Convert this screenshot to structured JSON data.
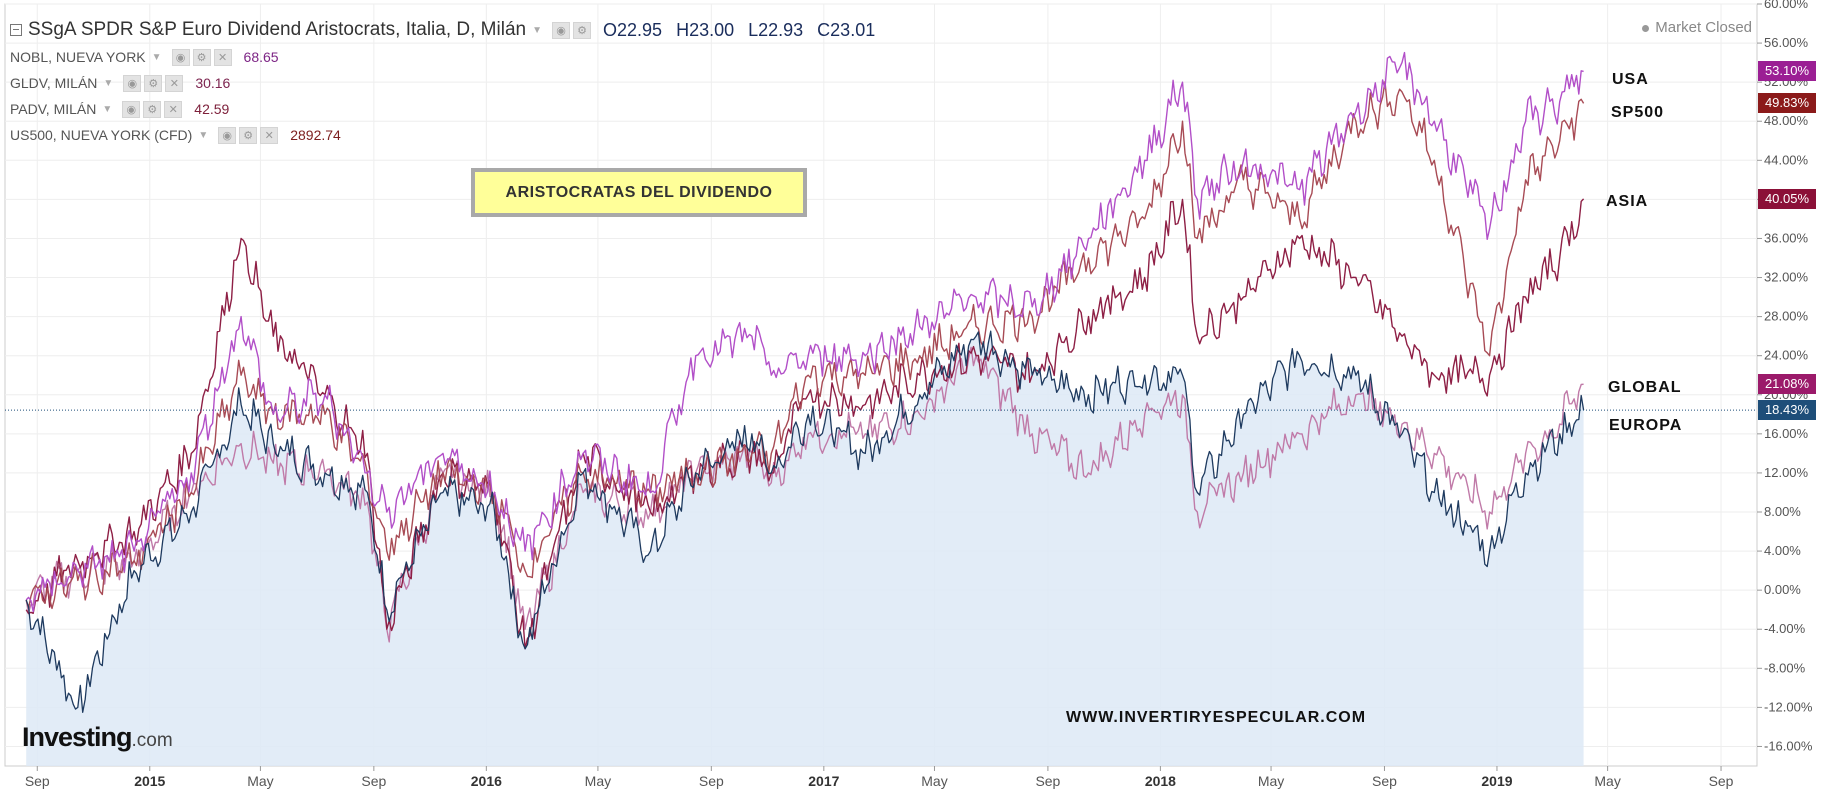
{
  "legend": {
    "main": {
      "title": "SSgA SPDR S&P Euro Dividend Aristocrats, Italia, D, Milán",
      "open_key": "O",
      "open": "22.95",
      "high_key": "H",
      "high": "23.00",
      "low_key": "L",
      "low": "22.93",
      "close_key": "C",
      "close": "23.01"
    },
    "rows": [
      {
        "name": "NOBL, NUEVA YORK",
        "value": "68.65",
        "color": "#7d2585"
      },
      {
        "name": "GLDV, MILÁN",
        "value": "30.16",
        "color": "#7d2550"
      },
      {
        "name": "PADV, MILÁN",
        "value": "42.59",
        "color": "#7d1f3a"
      },
      {
        "name": "US500, NUEVA YORK (CFD)",
        "value": "2892.74",
        "color": "#7d1f1f"
      }
    ]
  },
  "market_status": "Market Closed",
  "annotations": {
    "title_box": "ARISTOCRATAS DEL DIVIDENDO",
    "watermark": "WWW.INVERTIRYESPECULAR.COM",
    "logo_main": "Investing",
    "logo_sub": ".com",
    "labels": {
      "usa": "USA",
      "sp500": "SP500",
      "asia": "ASIA",
      "global": "GLOBAL",
      "europa": "EUROPA"
    }
  },
  "badges": [
    {
      "text": "53.10%",
      "value": 53.1,
      "color": "#9b1f94"
    },
    {
      "text": "49.83%",
      "value": 49.83,
      "color": "#8b1a1a"
    },
    {
      "text": "40.05%",
      "value": 40.05,
      "color": "#8b1038"
    },
    {
      "text": "21.08%",
      "value": 21.08,
      "color": "#9b1a6a"
    },
    {
      "text": "18.43%",
      "value": 18.43,
      "color": "#1e4e79"
    }
  ],
  "colors": {
    "usa": "#b24fc8",
    "sp500": "#a84b55",
    "asia": "#8e1f45",
    "global": "#c07aa8",
    "europa": "#1e3a5f",
    "europa_fill": "#dde9f6",
    "baseline": "#1e4e79",
    "grid": "#eeeeee"
  },
  "chart_data": {
    "type": "line",
    "y_unit": "%",
    "ylim": [
      -18,
      60
    ],
    "x_tick_labels": [
      "Sep",
      "2015",
      "May",
      "Sep",
      "2016",
      "May",
      "Sep",
      "2017",
      "May",
      "Sep",
      "2018",
      "May",
      "Sep",
      "2019",
      "May",
      "Sep"
    ],
    "x_tick_bold": [
      false,
      true,
      false,
      false,
      true,
      false,
      false,
      true,
      false,
      false,
      true,
      false,
      false,
      true,
      false,
      false
    ],
    "y_tick_labels": [
      "60.00%",
      "56.00%",
      "52.00%",
      "48.00%",
      "44.00%",
      "40.00%",
      "36.00%",
      "32.00%",
      "28.00%",
      "24.00%",
      "20.00%",
      "16.00%",
      "12.00%",
      "8.00%",
      "4.00%",
      "0.00%",
      "-4.00%",
      "-8.00%",
      "-12.00%",
      "-16.00%"
    ],
    "y_tick_values": [
      60,
      56,
      52,
      48,
      44,
      40,
      36,
      32,
      28,
      24,
      20,
      16,
      12,
      8,
      4,
      0,
      -4,
      -8,
      -12,
      -16
    ],
    "baseline_value": 18.43,
    "x_dates": [
      "2014-08-20",
      "2014-10-15",
      "2014-12-15",
      "2015-02-15",
      "2015-04-10",
      "2015-05-15",
      "2015-07-10",
      "2015-08-25",
      "2015-09-15",
      "2015-11-15",
      "2016-01-10",
      "2016-02-12",
      "2016-04-15",
      "2016-06-27",
      "2016-08-15",
      "2016-10-15",
      "2016-11-05",
      "2016-12-15",
      "2017-02-15",
      "2017-04-15",
      "2017-06-15",
      "2017-08-15",
      "2017-10-15",
      "2017-12-15",
      "2018-01-25",
      "2018-02-10",
      "2018-04-01",
      "2018-06-01",
      "2018-08-01",
      "2018-09-20",
      "2018-10-25",
      "2018-12-24",
      "2019-02-01",
      "2019-03-10",
      "2019-04-05"
    ],
    "series": [
      {
        "key": "usa",
        "values": [
          -1,
          2,
          4,
          12,
          28,
          18,
          20,
          12,
          8,
          14,
          10,
          4,
          14,
          10,
          24,
          26,
          22,
          24,
          24,
          27,
          30,
          29,
          36,
          44,
          52,
          40,
          44,
          41,
          49,
          54,
          48,
          37,
          48,
          50,
          53.1
        ]
      },
      {
        "key": "sp500",
        "values": [
          -1,
          1,
          3,
          10,
          22,
          18,
          18,
          12,
          4,
          12,
          10,
          2,
          12,
          10,
          12,
          14,
          14,
          22,
          22,
          24,
          27,
          28,
          34,
          38,
          48,
          36,
          42,
          38,
          48,
          51,
          44,
          24,
          42,
          46,
          49.83
        ]
      },
      {
        "key": "asia",
        "values": [
          -2,
          3,
          6,
          14,
          36,
          26,
          20,
          14,
          -4,
          12,
          10,
          -6,
          14,
          8,
          12,
          14,
          12,
          20,
          19,
          22,
          24,
          22,
          28,
          32,
          40,
          26,
          30,
          36,
          32,
          26,
          22,
          22,
          30,
          34,
          40.05
        ]
      },
      {
        "key": "global",
        "values": [
          -1,
          2,
          3,
          10,
          15,
          13,
          12,
          9,
          -4,
          12,
          10,
          -4,
          10,
          8,
          12,
          14,
          11,
          16,
          16,
          18,
          24,
          16,
          12,
          18,
          20,
          8,
          12,
          16,
          20,
          17,
          14,
          8,
          14,
          17,
          21.08
        ]
      },
      {
        "key": "europa",
        "values": [
          -1,
          -12,
          2,
          8,
          19,
          15,
          12,
          10,
          -2,
          10,
          8,
          -6,
          12,
          4,
          12,
          16,
          12,
          18,
          14,
          20,
          26,
          22,
          20,
          22,
          22,
          10,
          18,
          24,
          22,
          16,
          10,
          4,
          12,
          16,
          18.43
        ]
      }
    ]
  }
}
